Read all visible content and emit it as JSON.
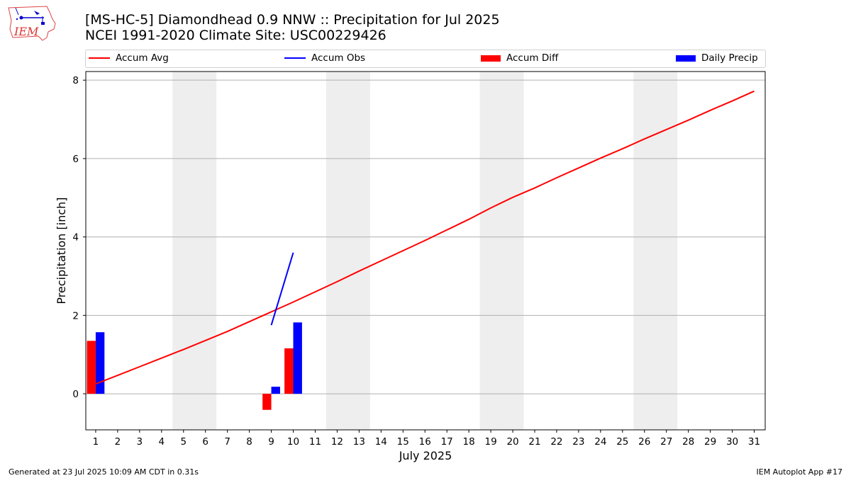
{
  "title": {
    "line1": "[MS-HC-5] Diamondhead 0.9 NNW :: Precipitation for Jul 2025",
    "line2": "NCEI 1991-2020 Climate Site: USC00229426"
  },
  "logo": {
    "text": "IEM"
  },
  "legend": {
    "items": [
      {
        "label": "Accum Avg",
        "color": "#ff0000",
        "kind": "line"
      },
      {
        "label": "Accum Obs",
        "color": "#0000ff",
        "kind": "line"
      },
      {
        "label": "Accum Diff",
        "color": "#ff0000",
        "kind": "patch"
      },
      {
        "label": "Daily Precip",
        "color": "#0000ff",
        "kind": "patch"
      }
    ]
  },
  "footer": {
    "left": "Generated at 23 Jul 2025 10:09 AM CDT in 0.31s",
    "right": "IEM Autoplot App #17"
  },
  "chart_data": {
    "type": "bar",
    "title": "[MS-HC-5] Diamondhead 0.9 NNW :: Precipitation for Jul 2025",
    "xlabel": "July 2025",
    "ylabel": "Precipitation [inch]",
    "ylim": [
      -0.92,
      8.22
    ],
    "xlim": [
      0.55,
      31.5
    ],
    "yticks": [
      0,
      2,
      4,
      6,
      8
    ],
    "x": [
      1,
      2,
      3,
      4,
      5,
      6,
      7,
      8,
      9,
      10,
      11,
      12,
      13,
      14,
      15,
      16,
      17,
      18,
      19,
      20,
      21,
      22,
      23,
      24,
      25,
      26,
      27,
      28,
      29,
      30,
      31
    ],
    "weekend_shading": [
      [
        4.5,
        6.5
      ],
      [
        11.5,
        13.5
      ],
      [
        18.5,
        20.5
      ],
      [
        25.5,
        27.5
      ]
    ],
    "grid": "horizontal",
    "legend_position": "top",
    "accum_avg": {
      "name": "Accum Avg",
      "color": "#ff0000",
      "x": [
        1,
        2,
        3,
        4,
        5,
        6,
        7,
        8,
        9,
        10,
        11,
        12,
        13,
        14,
        15,
        16,
        17,
        18,
        19,
        20,
        21,
        22,
        23,
        24,
        25,
        26,
        27,
        28,
        29,
        30,
        31
      ],
      "values": [
        0.25,
        0.47,
        0.69,
        0.91,
        1.13,
        1.36,
        1.59,
        1.84,
        2.09,
        2.34,
        2.6,
        2.86,
        3.13,
        3.39,
        3.65,
        3.91,
        4.18,
        4.45,
        4.74,
        5.01,
        5.25,
        5.51,
        5.76,
        6.01,
        6.25,
        6.5,
        6.74,
        6.98,
        7.23,
        7.47,
        7.72
      ]
    },
    "accum_obs": {
      "name": "Accum Obs",
      "color": "#0000ff",
      "x": [
        9,
        10
      ],
      "values": [
        1.75,
        3.6
      ]
    },
    "accum_diff": {
      "name": "Accum Diff",
      "color": "#ff0000",
      "x": [
        1,
        9,
        10
      ],
      "values": [
        1.35,
        -0.41,
        1.16
      ]
    },
    "daily_precip": {
      "name": "Daily Precip",
      "color": "#0000ff",
      "x": [
        1,
        9,
        10
      ],
      "values": [
        1.57,
        0.18,
        1.82
      ]
    }
  }
}
